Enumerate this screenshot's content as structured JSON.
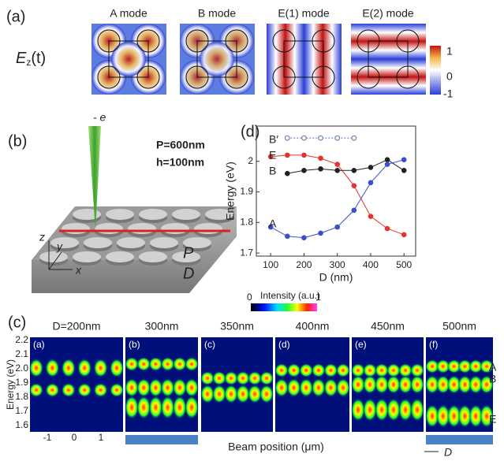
{
  "panel_a": {
    "label": "(a)",
    "field_label": "E",
    "field_sub": "z",
    "field_arg": "(t)",
    "modes": [
      "A mode",
      "B mode",
      "E(1) mode",
      "E(2) mode"
    ],
    "colorbar_ticks": [
      "1",
      "0",
      "-1"
    ]
  },
  "panel_b": {
    "label": "(b)",
    "beam": "- e",
    "period": "P=600nm",
    "height": "h=100nm",
    "dim_p": "P",
    "dim_d": "D",
    "axes": [
      "z",
      "y",
      "x"
    ]
  },
  "panel_c": {
    "label": "(c)",
    "colorbar_title": "Intensity (a.u.)",
    "colorbar_ticks": [
      "0",
      "1"
    ],
    "panels": [
      {
        "tag": "(a)",
        "title": "D=200nm"
      },
      {
        "tag": "(b)",
        "title": "300nm"
      },
      {
        "tag": "(c)",
        "title": "350nm"
      },
      {
        "tag": "(d)",
        "title": "400nm"
      },
      {
        "tag": "(e)",
        "title": "450nm"
      },
      {
        "tag": "(f)",
        "title": "500nm"
      }
    ],
    "y_title": "Energy (eV)",
    "y_ticks": [
      "2.2",
      "2.1",
      "2.0",
      "1.9",
      "1.8",
      "1.7",
      "1.6"
    ],
    "x_ticks": [
      "-1",
      "0",
      "1"
    ],
    "x_title": "Beam position (μm)",
    "mode_labels": [
      "A",
      "B",
      "E"
    ],
    "d_mark": "D"
  },
  "chart_data": {
    "type": "line",
    "panel_label": "(d)",
    "x_label": "D (nm)",
    "y_label": "Energy (eV)",
    "xlim": [
      57,
      535
    ],
    "ylim": [
      1.69,
      2.115
    ],
    "xticks": [
      100,
      200,
      300,
      400,
      500
    ],
    "yticks": [
      1.7,
      1.8,
      1.9,
      2.0
    ],
    "series": [
      {
        "name": "B′",
        "color": "#5a6fb0",
        "line_style": "dotted",
        "marker_fill": "none",
        "x": [
          150,
          200,
          250,
          300,
          350
        ],
        "values": [
          2.076,
          2.076,
          2.076,
          2.076,
          2.076
        ]
      },
      {
        "name": "E",
        "color": "#e8322c",
        "x": [
          100,
          150,
          200,
          250,
          300,
          350,
          400,
          450,
          500
        ],
        "values": [
          2.015,
          2.02,
          2.02,
          2.01,
          1.99,
          1.92,
          1.82,
          1.78,
          1.76
        ]
      },
      {
        "name": "B",
        "color": "#222222",
        "x": [
          150,
          200,
          250,
          300,
          350,
          400,
          450,
          500
        ],
        "values": [
          1.96,
          1.97,
          1.975,
          1.97,
          1.97,
          1.98,
          2.005,
          1.97
        ]
      },
      {
        "name": "A",
        "color": "#3a4fd0",
        "x": [
          100,
          150,
          200,
          250,
          300,
          350,
          400,
          450,
          500
        ],
        "values": [
          1.785,
          1.755,
          1.75,
          1.765,
          1.785,
          1.84,
          1.93,
          1.99,
          2.005
        ]
      }
    ]
  }
}
